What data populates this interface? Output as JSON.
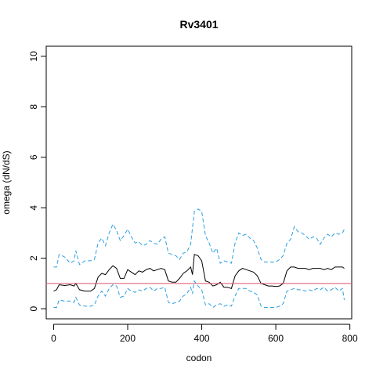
{
  "chart_data": {
    "type": "line",
    "title": "Rv3401",
    "xlabel": "codon",
    "ylabel": "omega (dN/dS)",
    "xlim": [
      -20,
      805
    ],
    "ylim": [
      -0.4,
      10.4
    ],
    "x_ticks": [
      0,
      200,
      400,
      600,
      800
    ],
    "x_tick_labels": [
      "0",
      "200",
      "400",
      "600",
      "800"
    ],
    "y_ticks": [
      0,
      2,
      4,
      6,
      8,
      10
    ],
    "y_tick_labels": [
      "0",
      "2",
      "4",
      "6",
      "8",
      "10"
    ],
    "grid": false,
    "reference_line": {
      "y": 1,
      "color": "#df536b"
    },
    "series": [
      {
        "role": "upper-bound",
        "style": "dashed",
        "color": "#2c9fe0",
        "x": [
          0,
          8,
          15,
          30,
          45,
          55,
          60,
          70,
          85,
          100,
          110,
          120,
          130,
          140,
          150,
          160,
          170,
          180,
          190,
          200,
          210,
          220,
          230,
          240,
          250,
          260,
          270,
          280,
          290,
          300,
          310,
          320,
          330,
          340,
          350,
          360,
          370,
          375,
          380,
          390,
          400,
          410,
          420,
          430,
          440,
          450,
          460,
          470,
          480,
          490,
          500,
          510,
          520,
          530,
          540,
          550,
          560,
          570,
          580,
          590,
          600,
          610,
          620,
          630,
          640,
          650,
          660,
          670,
          680,
          690,
          700,
          710,
          720,
          730,
          740,
          750,
          760,
          770,
          780,
          785
        ],
        "y": [
          1.65,
          1.65,
          2.15,
          2.05,
          1.8,
          1.9,
          2.3,
          1.75,
          1.9,
          1.9,
          1.95,
          2.6,
          2.8,
          2.5,
          3.0,
          3.35,
          3.1,
          2.7,
          2.9,
          3.15,
          2.85,
          2.6,
          2.65,
          2.5,
          2.55,
          2.7,
          2.6,
          2.55,
          2.75,
          2.85,
          2.2,
          2.15,
          2.1,
          1.95,
          2.2,
          2.25,
          2.55,
          3.2,
          3.85,
          3.95,
          3.85,
          2.9,
          2.6,
          2.2,
          2.4,
          1.8,
          1.9,
          1.85,
          1.8,
          2.6,
          3.0,
          2.9,
          2.95,
          2.8,
          2.7,
          2.4,
          1.95,
          1.85,
          1.85,
          1.85,
          1.85,
          1.95,
          2.1,
          2.6,
          2.75,
          3.25,
          3.05,
          3.0,
          2.9,
          2.75,
          2.85,
          2.8,
          2.55,
          2.8,
          2.95,
          2.85,
          3.0,
          2.95,
          3.0,
          3.15
        ]
      },
      {
        "role": "estimate",
        "style": "solid",
        "color": "#000000",
        "x": [
          0,
          8,
          15,
          30,
          45,
          55,
          60,
          70,
          85,
          100,
          110,
          120,
          130,
          140,
          150,
          160,
          170,
          180,
          190,
          200,
          210,
          220,
          230,
          240,
          250,
          260,
          270,
          280,
          290,
          300,
          310,
          320,
          330,
          340,
          350,
          360,
          370,
          375,
          380,
          390,
          400,
          410,
          420,
          430,
          440,
          450,
          460,
          470,
          480,
          490,
          500,
          510,
          520,
          530,
          540,
          550,
          560,
          570,
          580,
          590,
          600,
          610,
          620,
          630,
          640,
          650,
          660,
          670,
          680,
          690,
          700,
          710,
          720,
          730,
          740,
          750,
          760,
          770,
          780,
          785
        ],
        "y": [
          0.7,
          0.75,
          0.95,
          0.92,
          0.95,
          0.9,
          1.0,
          0.75,
          0.7,
          0.7,
          0.8,
          1.25,
          1.4,
          1.35,
          1.55,
          1.7,
          1.6,
          1.2,
          1.2,
          1.55,
          1.45,
          1.35,
          1.5,
          1.45,
          1.55,
          1.6,
          1.5,
          1.55,
          1.6,
          1.55,
          1.1,
          1.05,
          1.05,
          1.2,
          1.4,
          1.5,
          1.65,
          1.35,
          2.15,
          2.1,
          1.9,
          1.1,
          1.05,
          0.9,
          0.95,
          1.05,
          0.85,
          0.85,
          0.8,
          1.3,
          1.5,
          1.6,
          1.55,
          1.5,
          1.45,
          1.3,
          1.0,
          0.95,
          0.9,
          0.9,
          0.88,
          0.9,
          1.0,
          1.5,
          1.65,
          1.65,
          1.6,
          1.6,
          1.6,
          1.55,
          1.6,
          1.6,
          1.6,
          1.55,
          1.6,
          1.55,
          1.65,
          1.65,
          1.65,
          1.6
        ]
      },
      {
        "role": "lower-bound",
        "style": "dashed",
        "color": "#2c9fe0",
        "x": [
          0,
          8,
          15,
          30,
          45,
          55,
          60,
          70,
          85,
          100,
          110,
          120,
          130,
          140,
          150,
          160,
          170,
          180,
          190,
          200,
          210,
          220,
          230,
          240,
          250,
          260,
          270,
          280,
          290,
          300,
          310,
          320,
          330,
          340,
          350,
          360,
          370,
          375,
          380,
          390,
          400,
          410,
          420,
          430,
          440,
          450,
          460,
          470,
          480,
          490,
          500,
          510,
          520,
          530,
          540,
          550,
          560,
          570,
          580,
          590,
          600,
          610,
          620,
          630,
          640,
          650,
          660,
          670,
          680,
          690,
          700,
          710,
          720,
          730,
          740,
          750,
          760,
          770,
          780,
          785
        ],
        "y": [
          0.05,
          0.05,
          0.35,
          0.3,
          0.3,
          0.25,
          0.45,
          0.15,
          0.1,
          0.1,
          0.15,
          0.5,
          0.7,
          0.5,
          0.8,
          0.95,
          0.9,
          0.45,
          0.5,
          0.8,
          0.7,
          0.65,
          0.75,
          0.7,
          0.8,
          0.85,
          0.7,
          0.8,
          0.8,
          0.85,
          0.25,
          0.2,
          0.25,
          0.3,
          0.5,
          0.6,
          0.85,
          0.6,
          1.1,
          0.9,
          0.75,
          0.15,
          0.2,
          0.05,
          0.15,
          0.2,
          0.1,
          0.15,
          0.1,
          0.5,
          0.8,
          0.8,
          0.8,
          0.7,
          0.65,
          0.55,
          0.1,
          0.05,
          0.05,
          0.05,
          0.05,
          0.1,
          0.2,
          0.7,
          0.75,
          0.8,
          0.75,
          0.75,
          0.7,
          0.75,
          0.7,
          0.8,
          0.75,
          0.85,
          0.7,
          0.75,
          0.85,
          0.7,
          0.8,
          0.35
        ]
      }
    ]
  }
}
